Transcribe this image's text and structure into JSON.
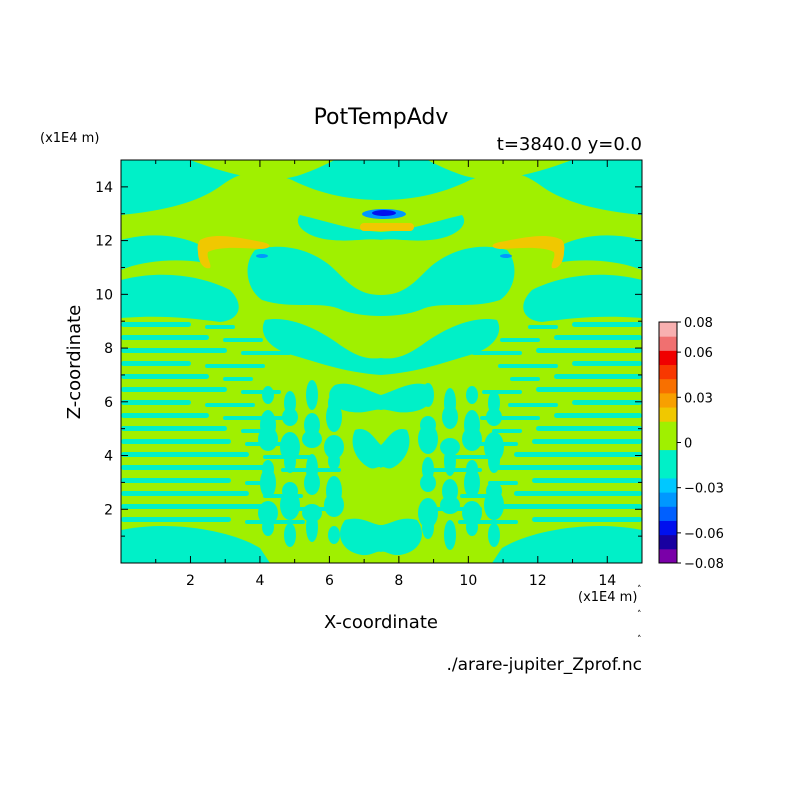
{
  "chart_data": {
    "type": "heatmap",
    "title": "PotTempAdv",
    "subtitle": "t=3840.0 y=0.0",
    "xlabel": "X-coordinate",
    "ylabel": "Z-coordinate",
    "x_unit": "(x1E4 m)",
    "y_unit": "(x1E4 m)",
    "xlim": [
      0,
      15
    ],
    "ylim": [
      0,
      15
    ],
    "x_ticks": [
      "2",
      "4",
      "6",
      "8",
      "10",
      "12",
      "14"
    ],
    "y_ticks": [
      "2",
      "4",
      "6",
      "8",
      "10",
      "12",
      "14"
    ],
    "colorbar": {
      "levels": [
        -0.08,
        -0.07,
        -0.06,
        -0.05,
        -0.04,
        -0.03,
        -0.02,
        -0.01,
        0,
        0.01,
        0.02,
        0.03,
        0.04,
        0.05,
        0.06,
        0.07,
        0.08
      ],
      "tick_labels": [
        "0.08",
        "0.06",
        "0.03",
        "0",
        "−0.03",
        "−0.06",
        "−0.08"
      ],
      "colors": [
        "#7a00a8",
        "#1800a0",
        "#0010ee",
        "#0060ff",
        "#0098ff",
        "#00c8ff",
        "#00f0c8",
        "#00f0c8",
        "#a0f000",
        "#a0f000",
        "#f0c800",
        "#f8a000",
        "#f87000",
        "#f83800",
        "#f00000",
        "#f07070",
        "#f8b0b0"
      ]
    },
    "dominant_values": {
      "background": 0,
      "cyan_regions": -0.005,
      "yellow_green_regions": 0.005
    }
  },
  "footer": {
    "filename": "./arare-jupiter_Zprof.nc"
  }
}
